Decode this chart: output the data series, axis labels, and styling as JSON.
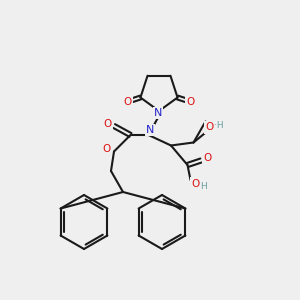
{
  "bg": "#efefef",
  "bc": "#1a1a1a",
  "Nc": "#2222cc",
  "Oc": "#dd1111",
  "OHc": "#6a9ea0",
  "lw": 1.5,
  "fs": 7.0,
  "xlim": [
    0,
    10
  ],
  "ylim": [
    0,
    10
  ]
}
